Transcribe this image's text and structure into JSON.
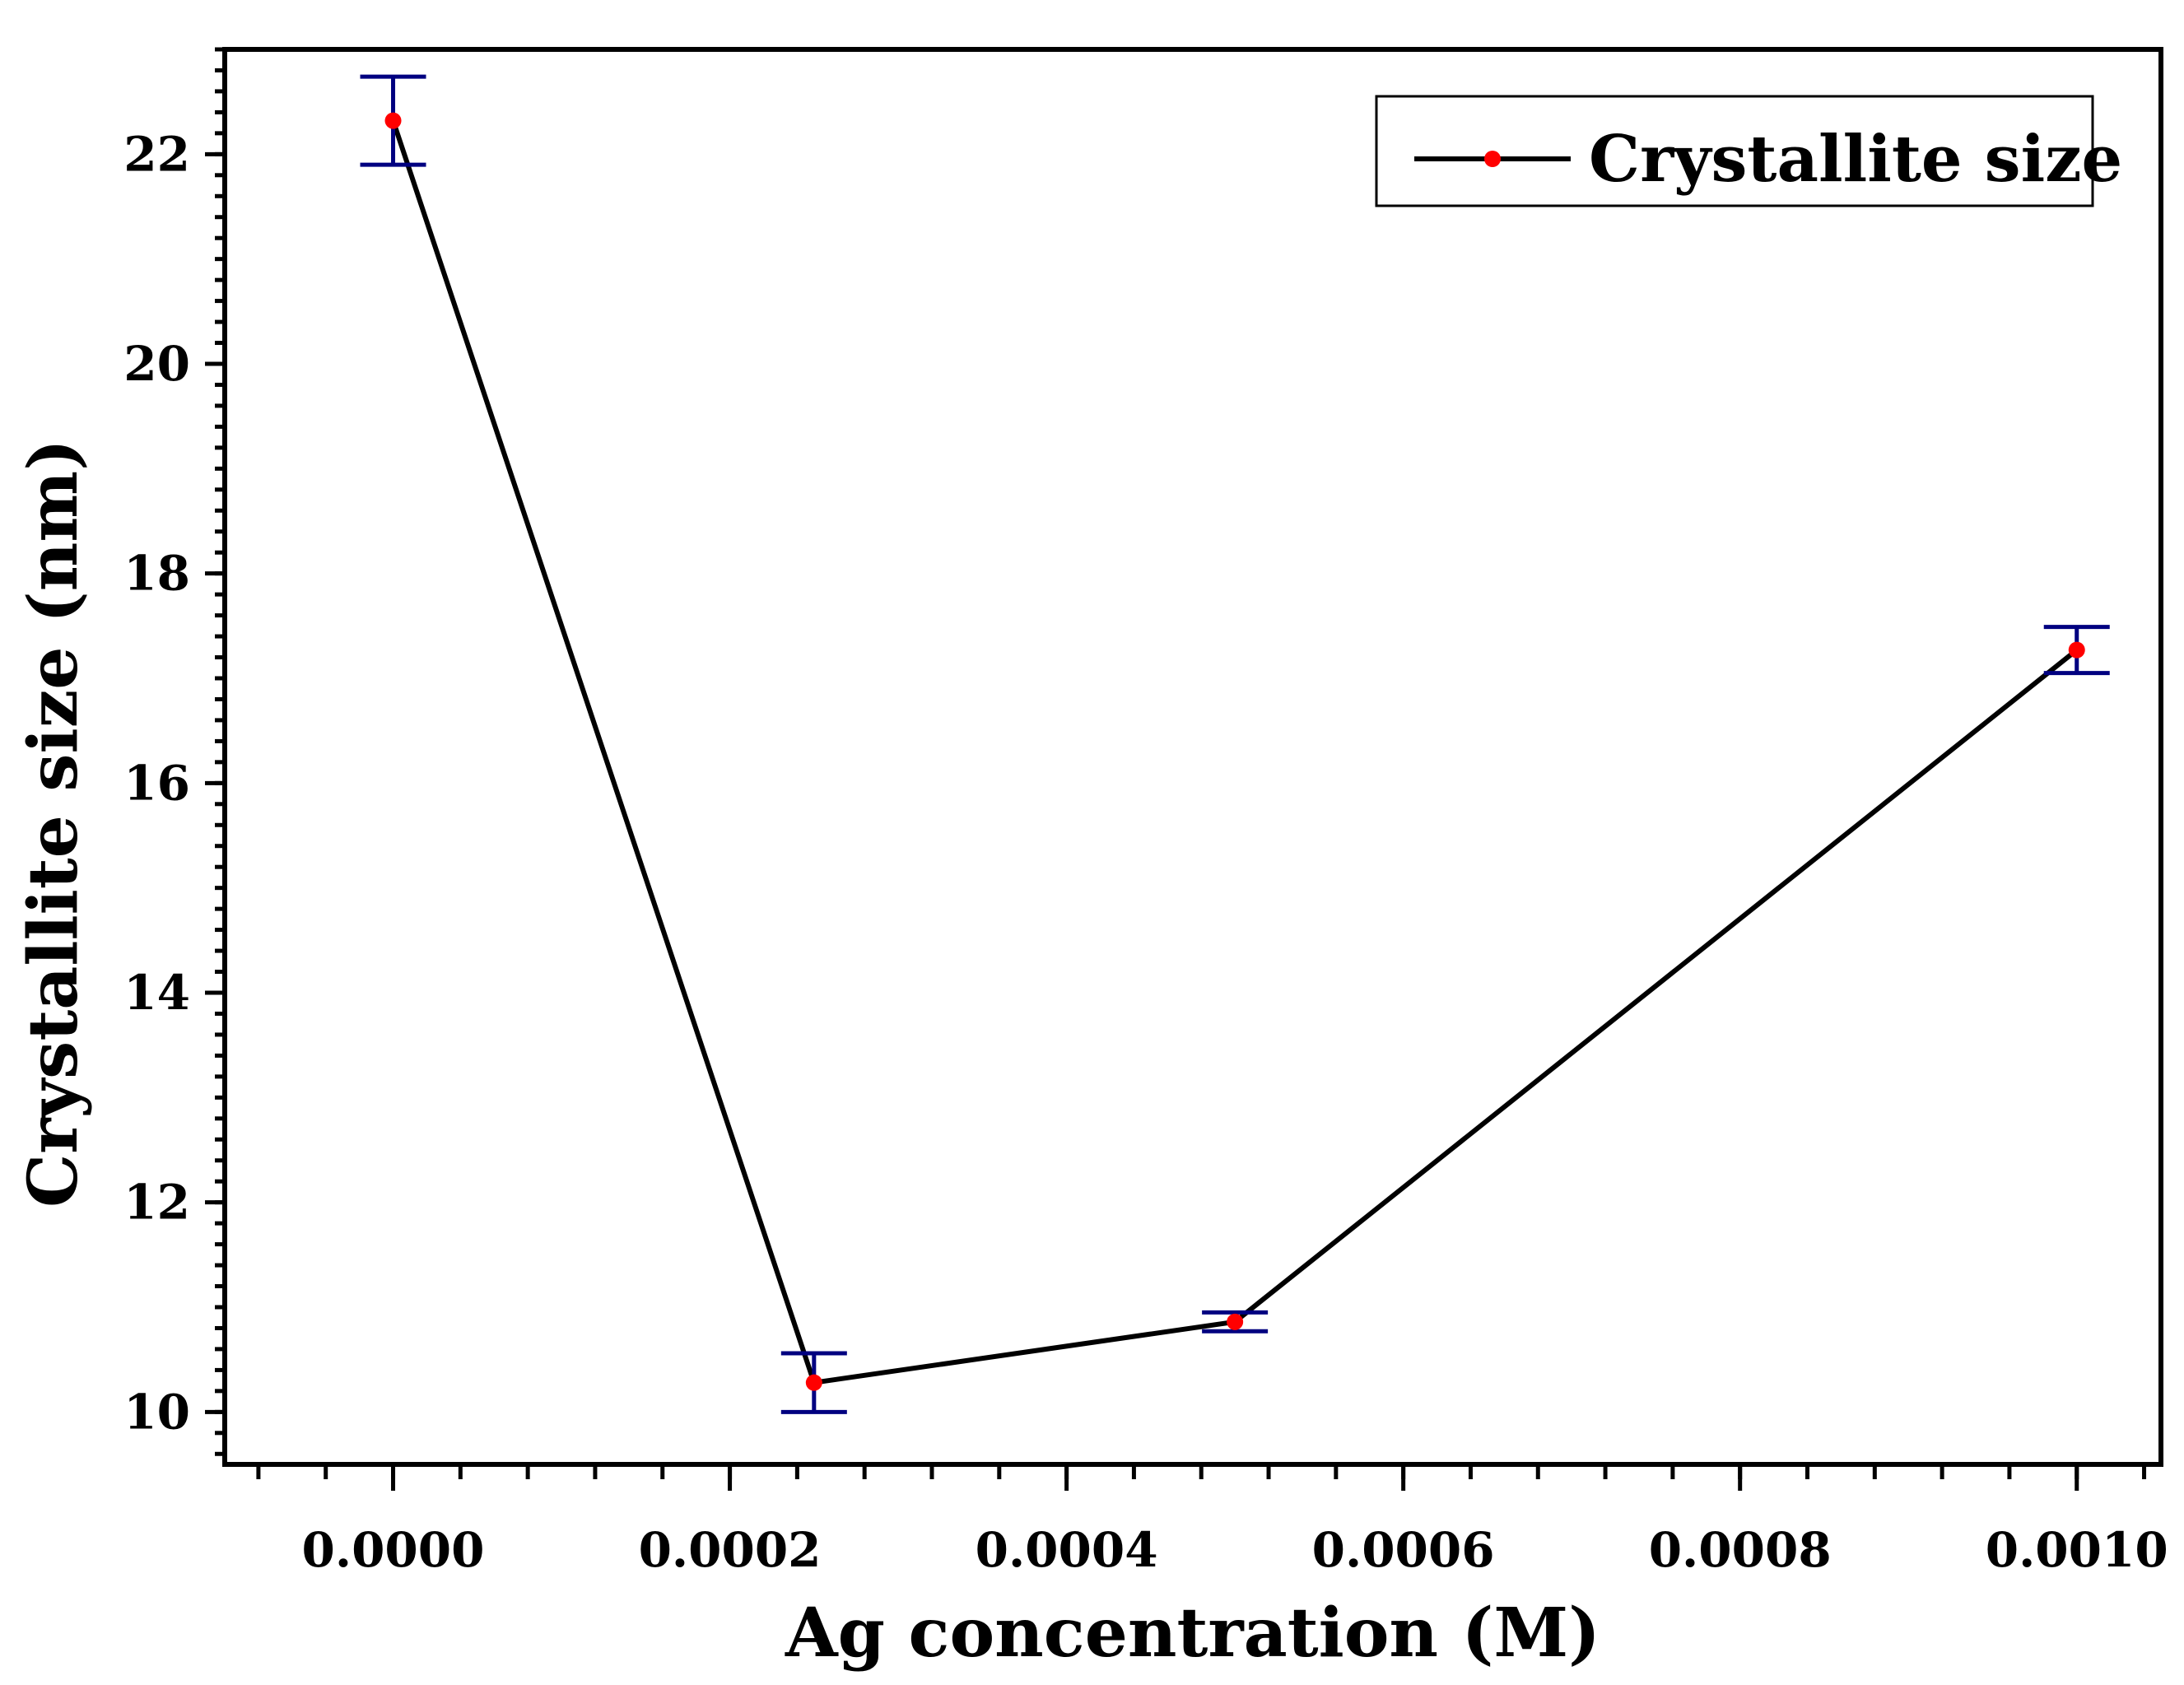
{
  "chart_data": {
    "type": "line",
    "title": "",
    "xlabel": "Ag concentration (M)",
    "ylabel": "Crystallite size (nm)",
    "xlim": [
      -0.0001,
      0.00105
    ],
    "ylim": [
      9.5,
      23.0
    ],
    "xticks": [
      0.0,
      0.0002,
      0.0004,
      0.0006,
      0.0008,
      0.001
    ],
    "xtick_labels": [
      "0.0000",
      "0.0002",
      "0.0004",
      "0.0006",
      "0.0008",
      "0.0010"
    ],
    "yticks": [
      10,
      12,
      14,
      16,
      18,
      20,
      22
    ],
    "ytick_labels": [
      "10",
      "12",
      "14",
      "16",
      "18",
      "20",
      "22"
    ],
    "grid": false,
    "legend": {
      "position": "top-right",
      "entries": [
        "Crystallite size"
      ]
    },
    "series": [
      {
        "name": "Crystallite size",
        "line_color": "#000000",
        "marker_color": "#ff0000",
        "errorbar_color": "#000080",
        "x": [
          0.0,
          0.00025,
          0.0005,
          0.001
        ],
        "y": [
          22.32,
          10.28,
          10.86,
          17.27
        ],
        "yerr": [
          0.42,
          0.28,
          0.09,
          0.22
        ]
      }
    ]
  }
}
